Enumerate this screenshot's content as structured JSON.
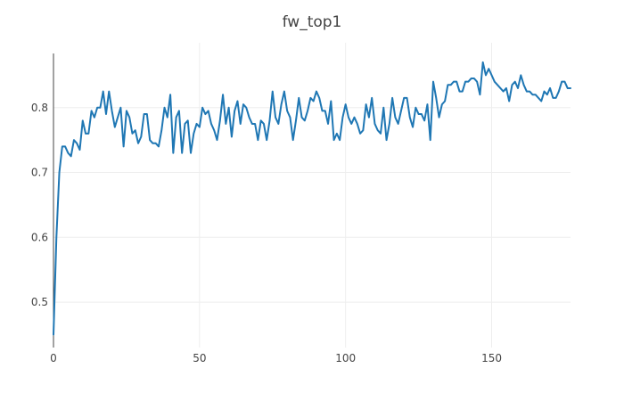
{
  "chart_data": {
    "type": "line",
    "title": "fw_top1",
    "xlabel": "",
    "ylabel": "",
    "xlim": [
      0,
      177
    ],
    "ylim": [
      0.43,
      0.9
    ],
    "xticks": [
      0,
      50,
      100,
      150
    ],
    "yticks": [
      0.5,
      0.6,
      0.7,
      0.8
    ],
    "grid": true,
    "legend": "none",
    "series": [
      {
        "color": "#1f77b4",
        "x": [
          0,
          1,
          2,
          3,
          4,
          5,
          6,
          7,
          8,
          9,
          10,
          11,
          12,
          13,
          14,
          15,
          16,
          17,
          18,
          19,
          20,
          21,
          22,
          23,
          24,
          25,
          26,
          27,
          28,
          29,
          30,
          31,
          32,
          33,
          34,
          35,
          36,
          37,
          38,
          39,
          40,
          41,
          42,
          43,
          44,
          45,
          46,
          47,
          48,
          49,
          50,
          51,
          52,
          53,
          54,
          55,
          56,
          57,
          58,
          59,
          60,
          61,
          62,
          63,
          64,
          65,
          66,
          67,
          68,
          69,
          70,
          71,
          72,
          73,
          74,
          75,
          76,
          77,
          78,
          79,
          80,
          81,
          82,
          83,
          84,
          85,
          86,
          87,
          88,
          89,
          90,
          91,
          92,
          93,
          94,
          95,
          96,
          97,
          98,
          99,
          100,
          101,
          102,
          103,
          104,
          105,
          106,
          107,
          108,
          109,
          110,
          111,
          112,
          113,
          114,
          115,
          116,
          117,
          118,
          119,
          120,
          121,
          122,
          123,
          124,
          125,
          126,
          127,
          128,
          129,
          130,
          131,
          132,
          133,
          134,
          135,
          136,
          137,
          138,
          139,
          140,
          141,
          142,
          143,
          144,
          145,
          146,
          147,
          148,
          149,
          150,
          151,
          152,
          153,
          154,
          155,
          156,
          157,
          158,
          159,
          160,
          161,
          162,
          163,
          164,
          165,
          166,
          167,
          168,
          169,
          170,
          171,
          172,
          173,
          174,
          175,
          176,
          177
        ],
        "values": [
          0.45,
          0.6,
          0.7,
          0.74,
          0.74,
          0.73,
          0.725,
          0.75,
          0.745,
          0.735,
          0.78,
          0.76,
          0.76,
          0.795,
          0.785,
          0.8,
          0.8,
          0.825,
          0.79,
          0.825,
          0.795,
          0.77,
          0.785,
          0.8,
          0.74,
          0.795,
          0.785,
          0.76,
          0.765,
          0.745,
          0.755,
          0.79,
          0.79,
          0.75,
          0.745,
          0.745,
          0.74,
          0.765,
          0.8,
          0.785,
          0.82,
          0.73,
          0.785,
          0.795,
          0.73,
          0.775,
          0.78,
          0.73,
          0.76,
          0.775,
          0.77,
          0.8,
          0.79,
          0.795,
          0.775,
          0.765,
          0.75,
          0.78,
          0.82,
          0.775,
          0.8,
          0.755,
          0.795,
          0.81,
          0.775,
          0.805,
          0.8,
          0.785,
          0.775,
          0.775,
          0.75,
          0.78,
          0.775,
          0.75,
          0.78,
          0.825,
          0.785,
          0.775,
          0.805,
          0.825,
          0.795,
          0.785,
          0.75,
          0.78,
          0.815,
          0.785,
          0.78,
          0.795,
          0.815,
          0.81,
          0.825,
          0.815,
          0.795,
          0.795,
          0.775,
          0.81,
          0.75,
          0.76,
          0.75,
          0.785,
          0.805,
          0.785,
          0.775,
          0.785,
          0.775,
          0.76,
          0.765,
          0.805,
          0.785,
          0.815,
          0.775,
          0.765,
          0.76,
          0.8,
          0.75,
          0.775,
          0.815,
          0.785,
          0.775,
          0.795,
          0.815,
          0.815,
          0.785,
          0.77,
          0.8,
          0.79,
          0.79,
          0.78,
          0.805,
          0.75,
          0.84,
          0.815,
          0.785,
          0.805,
          0.81,
          0.835,
          0.835,
          0.84,
          0.84,
          0.825,
          0.825,
          0.84,
          0.84,
          0.845,
          0.845,
          0.84,
          0.82,
          0.87,
          0.85,
          0.86,
          0.85,
          0.84,
          0.835,
          0.83,
          0.825,
          0.83,
          0.81,
          0.835,
          0.84,
          0.83,
          0.85,
          0.835,
          0.825,
          0.825,
          0.82,
          0.82,
          0.815,
          0.81,
          0.825,
          0.82,
          0.83,
          0.815,
          0.815,
          0.825,
          0.84,
          0.84,
          0.83,
          0.83
        ]
      }
    ]
  }
}
